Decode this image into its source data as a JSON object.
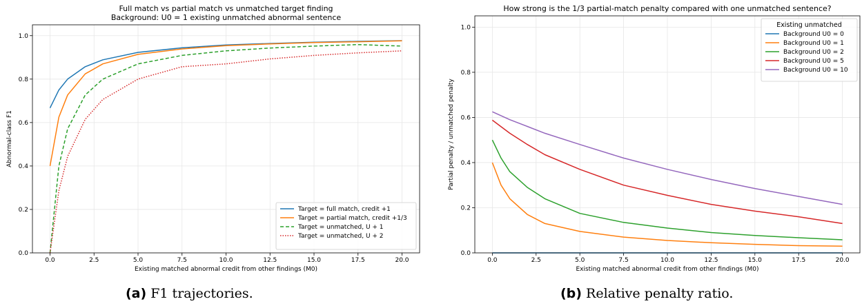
{
  "chart_data": [
    {
      "type": "line",
      "title": "Full match vs partial match vs unmatched target finding",
      "subtitle": "Background: U0 = 1 existing unmatched abnormal sentence",
      "xlabel": "Existing matched abnormal credit from other findings (M0)",
      "ylabel": "Abnormal-class F1",
      "xlim": [
        -1,
        21
      ],
      "ylim": [
        0,
        1.05
      ],
      "xticks": [
        "0.0",
        "2.5",
        "5.0",
        "7.5",
        "10.0",
        "12.5",
        "15.0",
        "17.5",
        "20.0"
      ],
      "yticks": [
        "0.0",
        "0.2",
        "0.4",
        "0.6",
        "0.8",
        "1.0"
      ],
      "grid": true,
      "legend_position": "lower-right",
      "x_range": [
        0,
        20
      ],
      "series": [
        {
          "name": "Target = full match, credit +1",
          "color": "#1f77b4",
          "dash": "solid",
          "points": [
            [
              0,
              0.667
            ],
            [
              0.5,
              0.75
            ],
            [
              1,
              0.8
            ],
            [
              2,
              0.857
            ],
            [
              3,
              0.889
            ],
            [
              5,
              0.923
            ],
            [
              7.5,
              0.944
            ],
            [
              10,
              0.957
            ],
            [
              12.5,
              0.964
            ],
            [
              15,
              0.97
            ],
            [
              17.5,
              0.974
            ],
            [
              20,
              0.977
            ]
          ]
        },
        {
          "name": "Target = partial match, credit +1/3",
          "color": "#ff7f0e",
          "dash": "solid",
          "points": [
            [
              0,
              0.4
            ],
            [
              0.5,
              0.625
            ],
            [
              1,
              0.727
            ],
            [
              2,
              0.824
            ],
            [
              3,
              0.87
            ],
            [
              5,
              0.914
            ],
            [
              7.5,
              0.939
            ],
            [
              10,
              0.954
            ],
            [
              12.5,
              0.962
            ],
            [
              15,
              0.968
            ],
            [
              17.5,
              0.972
            ],
            [
              20,
              0.976
            ]
          ]
        },
        {
          "name": "Target = unmatched, U + 1",
          "color": "#2ca02c",
          "dash": "dashed",
          "points": [
            [
              0,
              0.0
            ],
            [
              0.5,
              0.4
            ],
            [
              1,
              0.571
            ],
            [
              2,
              0.727
            ],
            [
              3,
              0.8
            ],
            [
              5,
              0.87
            ],
            [
              7.5,
              0.909
            ],
            [
              10,
              0.93
            ],
            [
              12.5,
              0.943
            ],
            [
              15,
              0.952
            ],
            [
              17.5,
              0.959
            ],
            [
              20,
              0.952
            ]
          ]
        },
        {
          "name": "Target = unmatched, U + 2",
          "color": "#d62728",
          "dash": "dotted",
          "points": [
            [
              0,
              0.0
            ],
            [
              0.5,
              0.286
            ],
            [
              1,
              0.444
            ],
            [
              2,
              0.615
            ],
            [
              3,
              0.706
            ],
            [
              5,
              0.8
            ],
            [
              7.5,
              0.857
            ],
            [
              10,
              0.87
            ],
            [
              12.5,
              0.893
            ],
            [
              15,
              0.909
            ],
            [
              17.5,
              0.921
            ],
            [
              20,
              0.93
            ]
          ]
        }
      ]
    },
    {
      "type": "line",
      "title": "How strong is the 1/3 partial-match penalty compared with one unmatched sentence?",
      "xlabel": "Existing matched abnormal credit from other findings (M0)",
      "ylabel": "Partial penalty / unmatched penalty",
      "xlim": [
        -1,
        21
      ],
      "ylim": [
        0,
        1.05
      ],
      "xticks": [
        "0.0",
        "2.5",
        "5.0",
        "7.5",
        "10.0",
        "12.5",
        "15.0",
        "17.5",
        "20.0"
      ],
      "yticks": [
        "0.0",
        "0.2",
        "0.4",
        "0.6",
        "0.8",
        "1.0"
      ],
      "grid": true,
      "legend_title": "Existing unmatched",
      "legend_position": "upper-right",
      "series": [
        {
          "name": "Background U0 = 0",
          "color": "#1f77b4",
          "points": [
            [
              0,
              0.0
            ],
            [
              20,
              0.0
            ]
          ]
        },
        {
          "name": "Background U0 = 1",
          "color": "#ff7f0e",
          "points": [
            [
              0,
              0.4
            ],
            [
              0.5,
              0.3
            ],
            [
              1,
              0.24
            ],
            [
              2,
              0.17
            ],
            [
              3,
              0.13
            ],
            [
              5,
              0.095
            ],
            [
              7.5,
              0.07
            ],
            [
              10,
              0.055
            ],
            [
              12.5,
              0.045
            ],
            [
              15,
              0.038
            ],
            [
              17.5,
              0.032
            ],
            [
              20,
              0.03
            ]
          ]
        },
        {
          "name": "Background U0 = 2",
          "color": "#2ca02c",
          "points": [
            [
              0,
              0.5
            ],
            [
              0.5,
              0.42
            ],
            [
              1,
              0.36
            ],
            [
              2,
              0.29
            ],
            [
              3,
              0.24
            ],
            [
              5,
              0.175
            ],
            [
              7.5,
              0.135
            ],
            [
              10,
              0.11
            ],
            [
              12.5,
              0.09
            ],
            [
              15,
              0.077
            ],
            [
              17.5,
              0.067
            ],
            [
              20,
              0.058
            ]
          ]
        },
        {
          "name": "Background U0 = 5",
          "color": "#d62728",
          "points": [
            [
              0,
              0.588
            ],
            [
              1,
              0.53
            ],
            [
              2,
              0.48
            ],
            [
              3,
              0.435
            ],
            [
              5,
              0.37
            ],
            [
              7.5,
              0.3
            ],
            [
              10,
              0.255
            ],
            [
              12.5,
              0.215
            ],
            [
              15,
              0.185
            ],
            [
              17.5,
              0.16
            ],
            [
              20,
              0.13
            ]
          ]
        },
        {
          "name": "Background U0 = 10",
          "color": "#9467bd",
          "points": [
            [
              0,
              0.625
            ],
            [
              1,
              0.59
            ],
            [
              2,
              0.56
            ],
            [
              3,
              0.53
            ],
            [
              5,
              0.48
            ],
            [
              7.5,
              0.42
            ],
            [
              10,
              0.37
            ],
            [
              12.5,
              0.325
            ],
            [
              15,
              0.285
            ],
            [
              17.5,
              0.25
            ],
            [
              20,
              0.215
            ]
          ]
        }
      ]
    }
  ],
  "captions": [
    {
      "label": "(a)",
      "text": "F1 trajectories."
    },
    {
      "label": "(b)",
      "text": "Relative penalty ratio."
    }
  ]
}
